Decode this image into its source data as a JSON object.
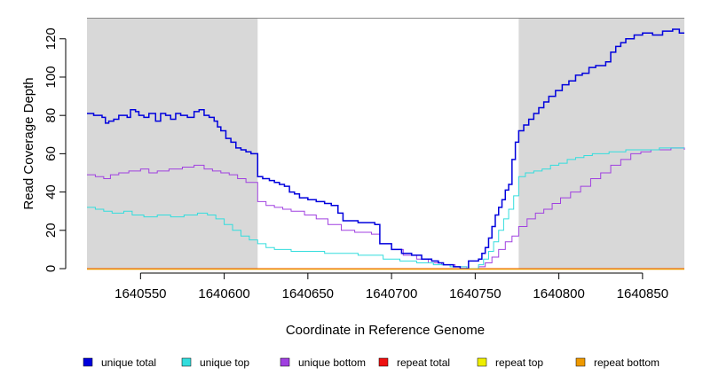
{
  "chart_data": {
    "type": "line",
    "title": "",
    "xlabel": "Coordinate in Reference Genome",
    "ylabel": "Read Coverage Depth",
    "xlim": [
      1640518,
      1640875
    ],
    "ylim": [
      0,
      131
    ],
    "xticks": [
      {
        "value": 1640550,
        "label": "1640550"
      },
      {
        "value": 1640600,
        "label": "1640600"
      },
      {
        "value": 1640650,
        "label": "1640650"
      },
      {
        "value": 1640700,
        "label": "1640700"
      },
      {
        "value": 1640750,
        "label": "1640750"
      },
      {
        "value": 1640800,
        "label": "1640800"
      },
      {
        "value": 1640850,
        "label": "1640850"
      }
    ],
    "yticks": [
      {
        "value": 0,
        "label": "0"
      },
      {
        "value": 20,
        "label": "20"
      },
      {
        "value": 40,
        "label": "40"
      },
      {
        "value": 60,
        "label": "60"
      },
      {
        "value": 80,
        "label": "80"
      },
      {
        "value": 100,
        "label": "100"
      },
      {
        "value": 120,
        "label": "120"
      }
    ],
    "shaded_regions": [
      {
        "x0": 1640518,
        "x1": 1640620,
        "color": "#d8d8d8"
      },
      {
        "x0": 1640776,
        "x1": 1640875,
        "color": "#d8d8d8"
      }
    ],
    "series": [
      {
        "name": "unique total",
        "color": "#0000dd",
        "points": [
          [
            1640518,
            81
          ],
          [
            1640522,
            80
          ],
          [
            1640527,
            79
          ],
          [
            1640529,
            76
          ],
          [
            1640531,
            77
          ],
          [
            1640534,
            78
          ],
          [
            1640537,
            80
          ],
          [
            1640542,
            79
          ],
          [
            1640544,
            83
          ],
          [
            1640547,
            82
          ],
          [
            1640549,
            80
          ],
          [
            1640552,
            79
          ],
          [
            1640555,
            81
          ],
          [
            1640559,
            77
          ],
          [
            1640562,
            81
          ],
          [
            1640565,
            80
          ],
          [
            1640568,
            78
          ],
          [
            1640571,
            81
          ],
          [
            1640574,
            80
          ],
          [
            1640578,
            79
          ],
          [
            1640582,
            82
          ],
          [
            1640585,
            83
          ],
          [
            1640588,
            80
          ],
          [
            1640591,
            79
          ],
          [
            1640594,
            77
          ],
          [
            1640596,
            74
          ],
          [
            1640598,
            72
          ],
          [
            1640601,
            68
          ],
          [
            1640604,
            66
          ],
          [
            1640607,
            63
          ],
          [
            1640610,
            62
          ],
          [
            1640613,
            61
          ],
          [
            1640616,
            60
          ],
          [
            1640620,
            48
          ],
          [
            1640623,
            47
          ],
          [
            1640627,
            46
          ],
          [
            1640630,
            45
          ],
          [
            1640633,
            44
          ],
          [
            1640636,
            43
          ],
          [
            1640639,
            40
          ],
          [
            1640642,
            39
          ],
          [
            1640645,
            37
          ],
          [
            1640650,
            36
          ],
          [
            1640655,
            35
          ],
          [
            1640660,
            34
          ],
          [
            1640664,
            33
          ],
          [
            1640668,
            29
          ],
          [
            1640671,
            25
          ],
          [
            1640680,
            24
          ],
          [
            1640690,
            23
          ],
          [
            1640693,
            13
          ],
          [
            1640700,
            10
          ],
          [
            1640706,
            8
          ],
          [
            1640712,
            7
          ],
          [
            1640718,
            5
          ],
          [
            1640724,
            4
          ],
          [
            1640728,
            3
          ],
          [
            1640731,
            2
          ],
          [
            1640737,
            1
          ],
          [
            1640741,
            0
          ],
          [
            1640744,
            0
          ],
          [
            1640746,
            4
          ],
          [
            1640752,
            5
          ],
          [
            1640754,
            8
          ],
          [
            1640756,
            11
          ],
          [
            1640758,
            16
          ],
          [
            1640760,
            22
          ],
          [
            1640762,
            28
          ],
          [
            1640764,
            32
          ],
          [
            1640766,
            36
          ],
          [
            1640768,
            41
          ],
          [
            1640770,
            44
          ],
          [
            1640772,
            57
          ],
          [
            1640774,
            66
          ],
          [
            1640776,
            72
          ],
          [
            1640779,
            75
          ],
          [
            1640782,
            78
          ],
          [
            1640785,
            81
          ],
          [
            1640788,
            84
          ],
          [
            1640791,
            87
          ],
          [
            1640794,
            90
          ],
          [
            1640798,
            93
          ],
          [
            1640802,
            96
          ],
          [
            1640806,
            98
          ],
          [
            1640810,
            101
          ],
          [
            1640814,
            102
          ],
          [
            1640818,
            105
          ],
          [
            1640822,
            106
          ],
          [
            1640828,
            108
          ],
          [
            1640831,
            113
          ],
          [
            1640834,
            116
          ],
          [
            1640837,
            118
          ],
          [
            1640840,
            120
          ],
          [
            1640845,
            122
          ],
          [
            1640850,
            123
          ],
          [
            1640856,
            122
          ],
          [
            1640862,
            124
          ],
          [
            1640868,
            125
          ],
          [
            1640872,
            123
          ],
          [
            1640875,
            123
          ]
        ]
      },
      {
        "name": "unique top",
        "color": "#33dddd",
        "points": [
          [
            1640518,
            32
          ],
          [
            1640523,
            31
          ],
          [
            1640528,
            30
          ],
          [
            1640533,
            29
          ],
          [
            1640540,
            30
          ],
          [
            1640545,
            28
          ],
          [
            1640552,
            27
          ],
          [
            1640560,
            28
          ],
          [
            1640568,
            27
          ],
          [
            1640576,
            28
          ],
          [
            1640584,
            29
          ],
          [
            1640590,
            28
          ],
          [
            1640595,
            26
          ],
          [
            1640600,
            23
          ],
          [
            1640605,
            20
          ],
          [
            1640610,
            17
          ],
          [
            1640615,
            15
          ],
          [
            1640620,
            13
          ],
          [
            1640625,
            11
          ],
          [
            1640630,
            10
          ],
          [
            1640640,
            9
          ],
          [
            1640660,
            8
          ],
          [
            1640680,
            7
          ],
          [
            1640695,
            5
          ],
          [
            1640705,
            4
          ],
          [
            1640715,
            3
          ],
          [
            1640725,
            2
          ],
          [
            1640735,
            1
          ],
          [
            1640745,
            0
          ],
          [
            1640752,
            2
          ],
          [
            1640755,
            5
          ],
          [
            1640758,
            9
          ],
          [
            1640761,
            14
          ],
          [
            1640764,
            20
          ],
          [
            1640767,
            26
          ],
          [
            1640770,
            31
          ],
          [
            1640773,
            38
          ],
          [
            1640776,
            48
          ],
          [
            1640780,
            50
          ],
          [
            1640785,
            51
          ],
          [
            1640790,
            52
          ],
          [
            1640795,
            54
          ],
          [
            1640800,
            55
          ],
          [
            1640805,
            57
          ],
          [
            1640810,
            58
          ],
          [
            1640815,
            59
          ],
          [
            1640820,
            60
          ],
          [
            1640830,
            61
          ],
          [
            1640840,
            62
          ],
          [
            1640860,
            63
          ],
          [
            1640875,
            63
          ]
        ]
      },
      {
        "name": "unique bottom",
        "color": "#a040e0",
        "points": [
          [
            1640518,
            49
          ],
          [
            1640523,
            48
          ],
          [
            1640528,
            47
          ],
          [
            1640532,
            49
          ],
          [
            1640537,
            50
          ],
          [
            1640543,
            51
          ],
          [
            1640550,
            52
          ],
          [
            1640555,
            50
          ],
          [
            1640560,
            51
          ],
          [
            1640567,
            52
          ],
          [
            1640575,
            53
          ],
          [
            1640582,
            54
          ],
          [
            1640588,
            52
          ],
          [
            1640593,
            51
          ],
          [
            1640598,
            50
          ],
          [
            1640603,
            49
          ],
          [
            1640608,
            47
          ],
          [
            1640613,
            45
          ],
          [
            1640620,
            35
          ],
          [
            1640625,
            33
          ],
          [
            1640630,
            32
          ],
          [
            1640635,
            31
          ],
          [
            1640640,
            30
          ],
          [
            1640648,
            28
          ],
          [
            1640655,
            26
          ],
          [
            1640662,
            23
          ],
          [
            1640670,
            20
          ],
          [
            1640678,
            19
          ],
          [
            1640688,
            18
          ],
          [
            1640693,
            13
          ],
          [
            1640700,
            10
          ],
          [
            1640707,
            7
          ],
          [
            1640715,
            5
          ],
          [
            1640722,
            3
          ],
          [
            1640730,
            2
          ],
          [
            1640738,
            1
          ],
          [
            1640745,
            0
          ],
          [
            1640752,
            1
          ],
          [
            1640756,
            3
          ],
          [
            1640760,
            6
          ],
          [
            1640764,
            10
          ],
          [
            1640768,
            14
          ],
          [
            1640772,
            17
          ],
          [
            1640776,
            22
          ],
          [
            1640781,
            26
          ],
          [
            1640786,
            29
          ],
          [
            1640791,
            31
          ],
          [
            1640796,
            34
          ],
          [
            1640801,
            37
          ],
          [
            1640807,
            40
          ],
          [
            1640813,
            43
          ],
          [
            1640819,
            47
          ],
          [
            1640825,
            50
          ],
          [
            1640831,
            54
          ],
          [
            1640837,
            57
          ],
          [
            1640843,
            60
          ],
          [
            1640849,
            61
          ],
          [
            1640855,
            62
          ],
          [
            1640861,
            62
          ],
          [
            1640867,
            63
          ],
          [
            1640875,
            62
          ]
        ]
      },
      {
        "name": "repeat total",
        "color": "#ee1111",
        "points": [
          [
            1640518,
            0
          ],
          [
            1640875,
            0
          ]
        ]
      },
      {
        "name": "repeat top",
        "color": "#eeee00",
        "points": [
          [
            1640518,
            0
          ],
          [
            1640875,
            0
          ]
        ]
      },
      {
        "name": "repeat bottom",
        "color": "#ee9900",
        "points": [
          [
            1640518,
            0
          ],
          [
            1640875,
            0
          ]
        ]
      }
    ],
    "legend": {
      "placement": "bottom",
      "entries": [
        {
          "label": "unique total",
          "color": "#0000dd"
        },
        {
          "label": "unique top",
          "color": "#33dddd"
        },
        {
          "label": "unique bottom",
          "color": "#a040e0"
        },
        {
          "label": "repeat total",
          "color": "#ee1111"
        },
        {
          "label": "repeat top",
          "color": "#eeee00"
        },
        {
          "label": "repeat bottom",
          "color": "#ee9900"
        }
      ]
    }
  }
}
